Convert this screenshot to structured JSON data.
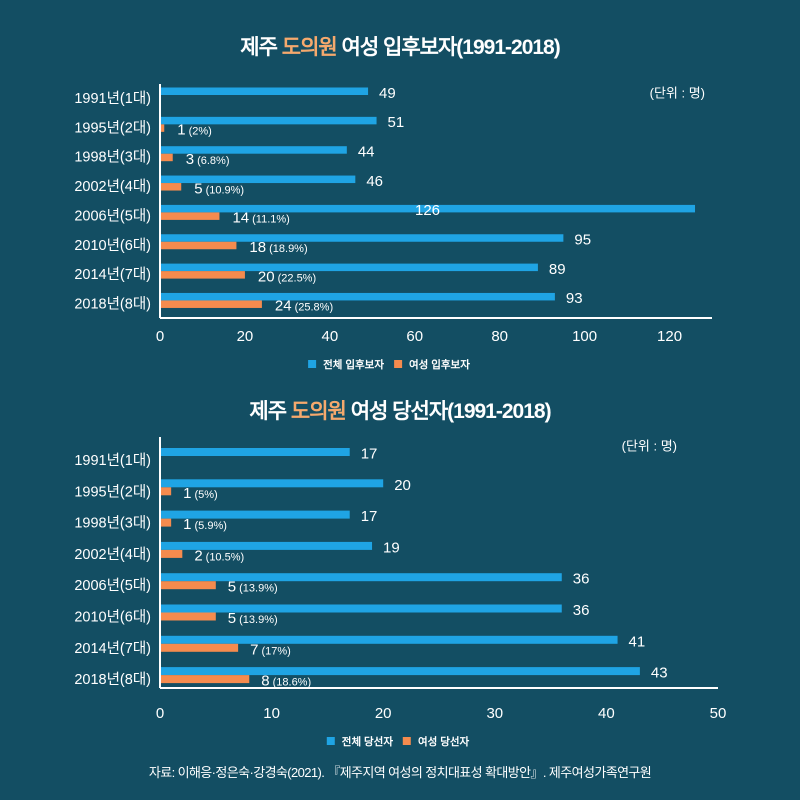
{
  "page": {
    "background": "#134e63",
    "accent": "#f5a96d",
    "source": "자료: 이해응·정은숙·강경숙(2021). 『제주지역 여성의 정치대표성 확대방안』. 제주여성가족연구원"
  },
  "chart_data": [
    {
      "type": "bar",
      "title": {
        "prefix": "제주 ",
        "highlight": "도의원",
        "suffix": " 여성 입후보자(1991-2018)"
      },
      "unit": "(단위 : 명)",
      "categories": [
        "1991년(1대)",
        "1995년(2대)",
        "1998년(3대)",
        "2002년(4대)",
        "2006년(5대)",
        "2010년(6대)",
        "2014년(7대)",
        "2018년(8대)"
      ],
      "series": [
        {
          "name": "전체 입후보자",
          "color": "#1fa4e4",
          "values": [
            49,
            51,
            44,
            46,
            126,
            95,
            89,
            93
          ]
        },
        {
          "name": "여성 입후보자",
          "color": "#f58b4e",
          "values": [
            null,
            1,
            3,
            5,
            14,
            18,
            20,
            24
          ],
          "percent_labels": [
            null,
            "(2%)",
            "(6.8%)",
            "(10.9%)",
            "(11.1%)",
            "(18.9%)",
            "(22.5%)",
            "(25.8%)"
          ]
        }
      ],
      "xticks": [
        0,
        20,
        40,
        60,
        80,
        100,
        120
      ],
      "xlim": [
        0,
        130
      ],
      "grid": false
    },
    {
      "type": "bar",
      "title": {
        "prefix": "제주 ",
        "highlight": "도의원",
        "suffix": " 여성 당선자(1991-2018)"
      },
      "unit": "(단위 : 명)",
      "categories": [
        "1991년(1대)",
        "1995년(2대)",
        "1998년(3대)",
        "2002년(4대)",
        "2006년(5대)",
        "2010년(6대)",
        "2014년(7대)",
        "2018년(8대)"
      ],
      "series": [
        {
          "name": "전체 당선자",
          "color": "#1fa4e4",
          "values": [
            17,
            20,
            17,
            19,
            36,
            36,
            41,
            43
          ]
        },
        {
          "name": "여성 당선자",
          "color": "#f58b4e",
          "values": [
            null,
            1,
            1,
            2,
            5,
            5,
            7,
            8
          ],
          "percent_labels": [
            null,
            "(5%)",
            "(5.9%)",
            "(10.5%)",
            "(13.9%)",
            "(13.9%)",
            "(17%)",
            "(18.6%)"
          ]
        }
      ],
      "xticks": [
        0,
        10,
        20,
        30,
        40,
        50
      ],
      "xlim": [
        0,
        50
      ],
      "grid": false
    }
  ]
}
